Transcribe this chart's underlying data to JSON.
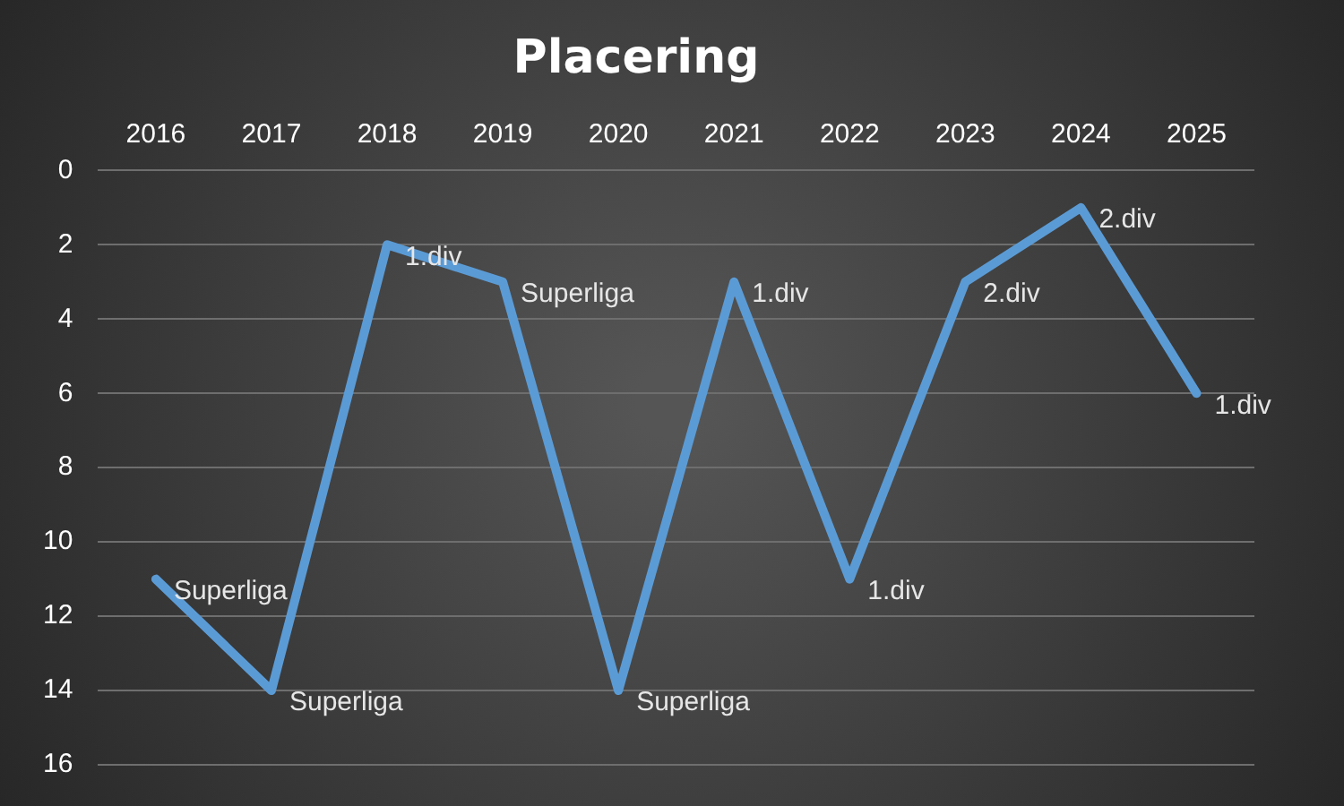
{
  "chart_data": {
    "type": "line",
    "title": "Placering",
    "categories": [
      "2016",
      "2017",
      "2018",
      "2019",
      "2020",
      "2021",
      "2022",
      "2023",
      "2024",
      "2025"
    ],
    "series": [
      {
        "color": "#5b9bd5",
        "values": [
          11,
          14,
          2,
          3,
          14,
          3,
          11,
          3,
          1,
          6
        ]
      }
    ],
    "annotations": [
      {
        "text": "Superliga",
        "x": "2016",
        "y": 11
      },
      {
        "text": "Superliga",
        "x": "2017",
        "y": 14
      },
      {
        "text": "1.div",
        "x": "2018",
        "y": 2
      },
      {
        "text": "Superliga",
        "x": "2019",
        "y": 3
      },
      {
        "text": "Superliga",
        "x": "2020",
        "y": 14
      },
      {
        "text": "1.div",
        "x": "2021",
        "y": 3
      },
      {
        "text": "1.div",
        "x": "2022",
        "y": 11
      },
      {
        "text": "2.div",
        "x": "2023",
        "y": 3
      },
      {
        "text": "2.div",
        "x": "2024",
        "y": 1
      },
      {
        "text": "1.div",
        "x": "2025",
        "y": 6
      }
    ],
    "ylim": [
      16,
      0
    ],
    "yticks": [
      0,
      2,
      4,
      6,
      8,
      10,
      12,
      14,
      16
    ],
    "grid": "y",
    "legend": false,
    "marker": "none",
    "line_style": "solid"
  }
}
